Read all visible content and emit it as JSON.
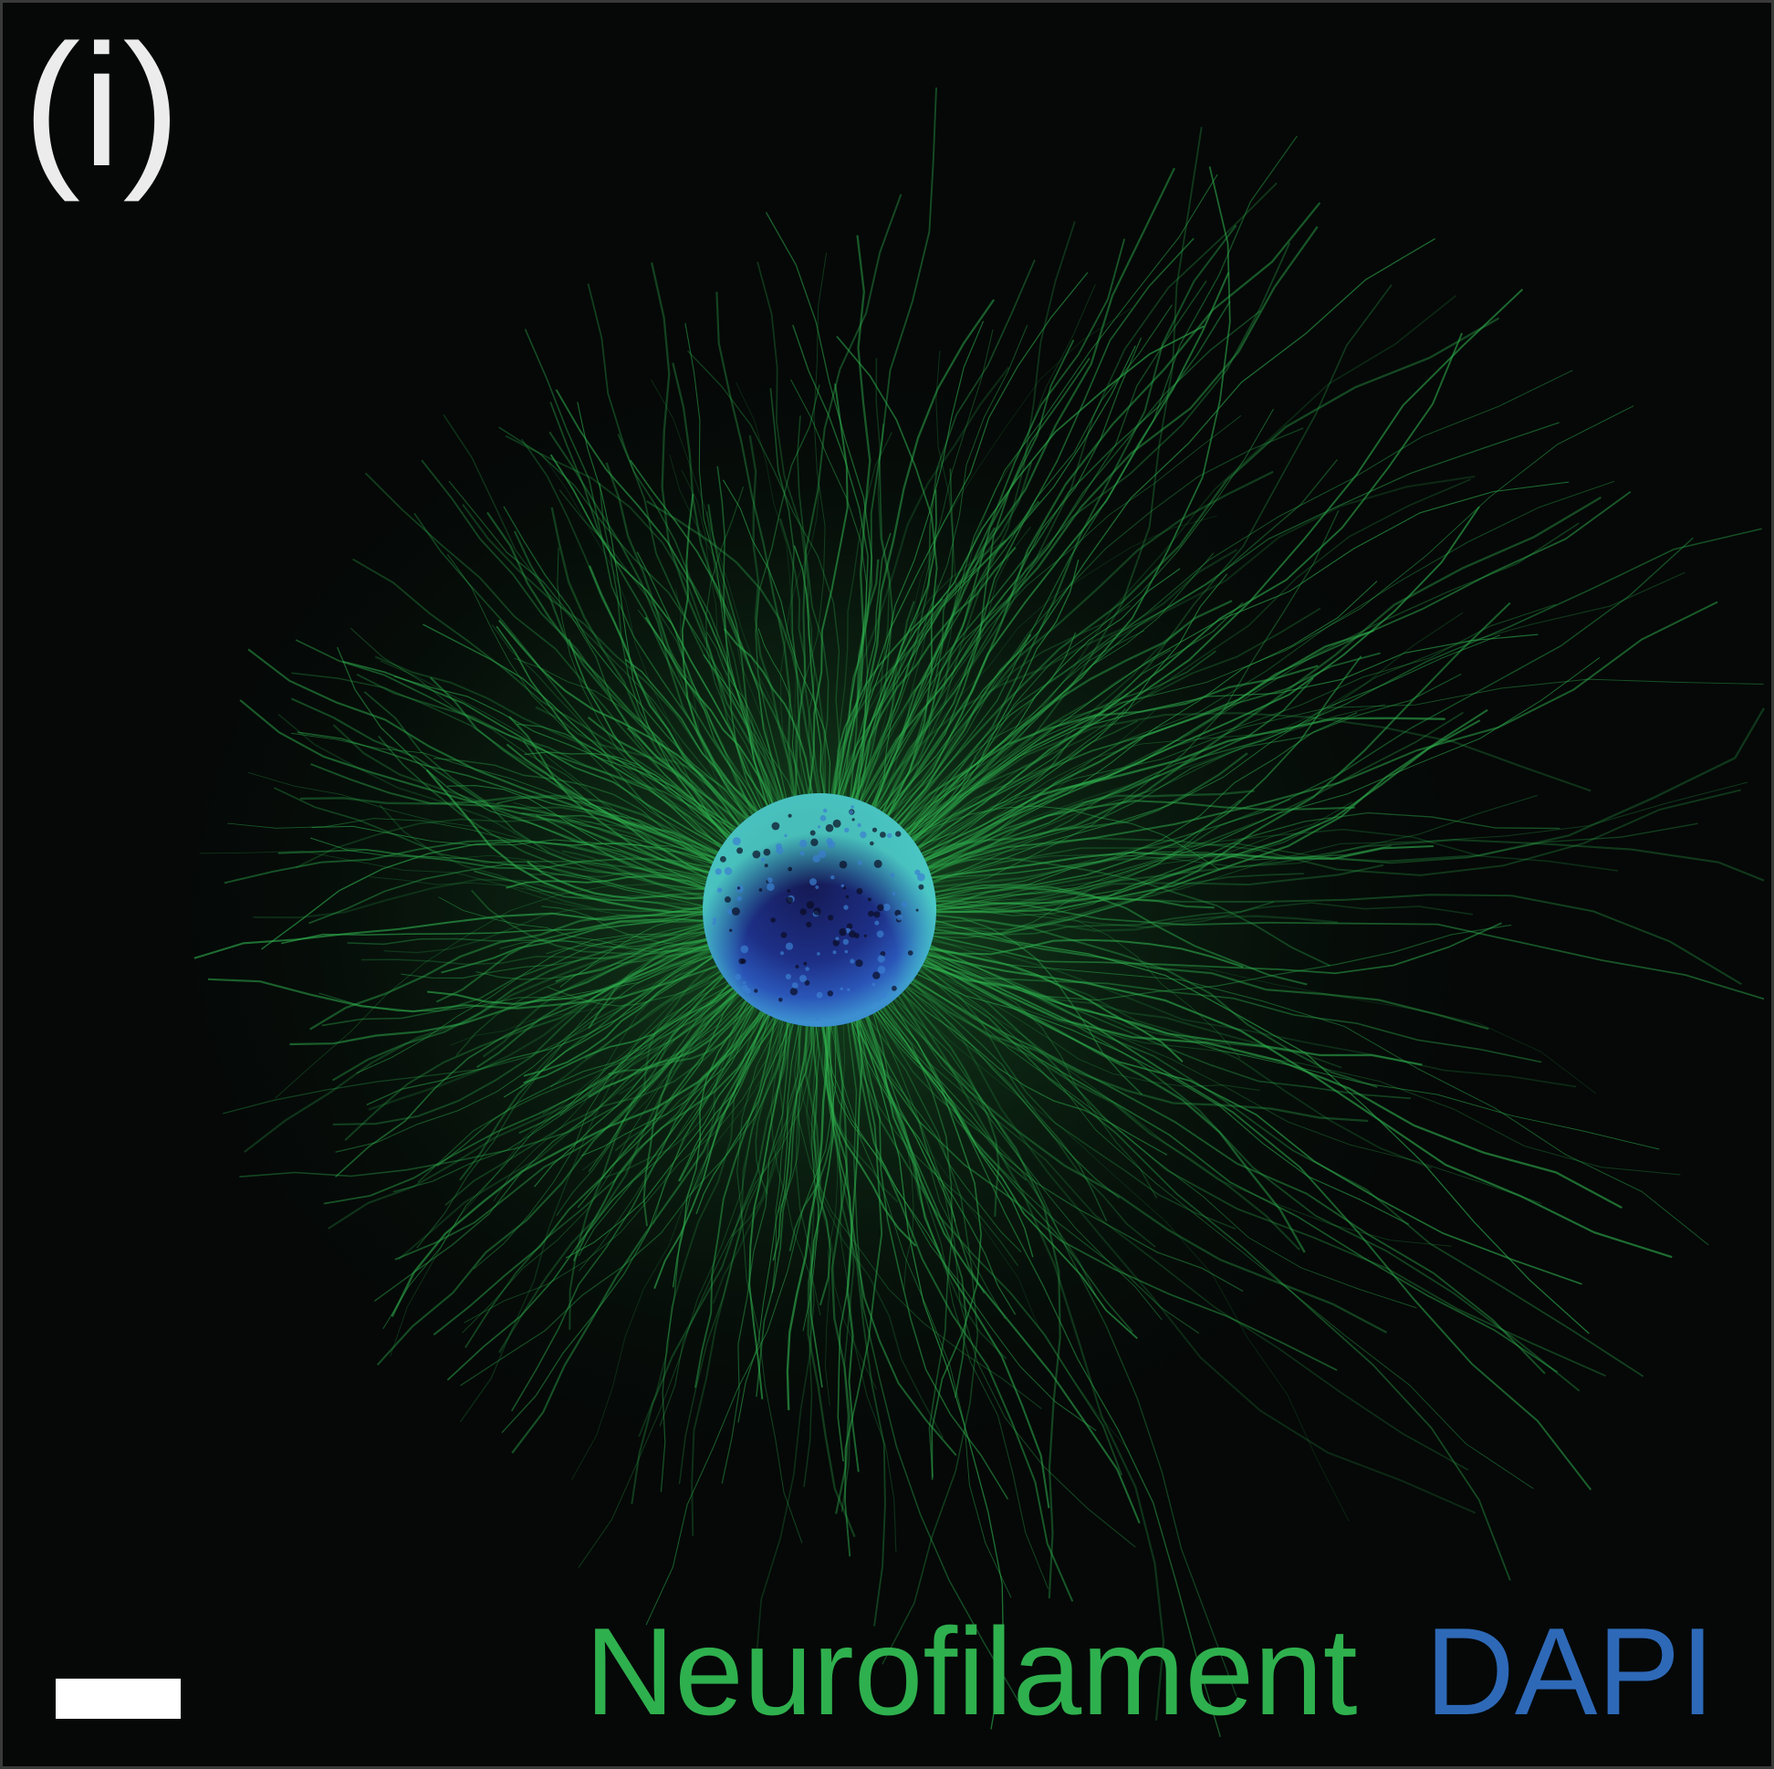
{
  "panel": {
    "label": "(i)"
  },
  "legend": {
    "stain_1": "Neurofilament",
    "stain_2": "DAPI"
  },
  "colors": {
    "background": "#050807",
    "neurofilament": "#2fb04e",
    "dapi": "#2e69b8",
    "label": "#ececec",
    "scale_bar": "#ffffff"
  }
}
